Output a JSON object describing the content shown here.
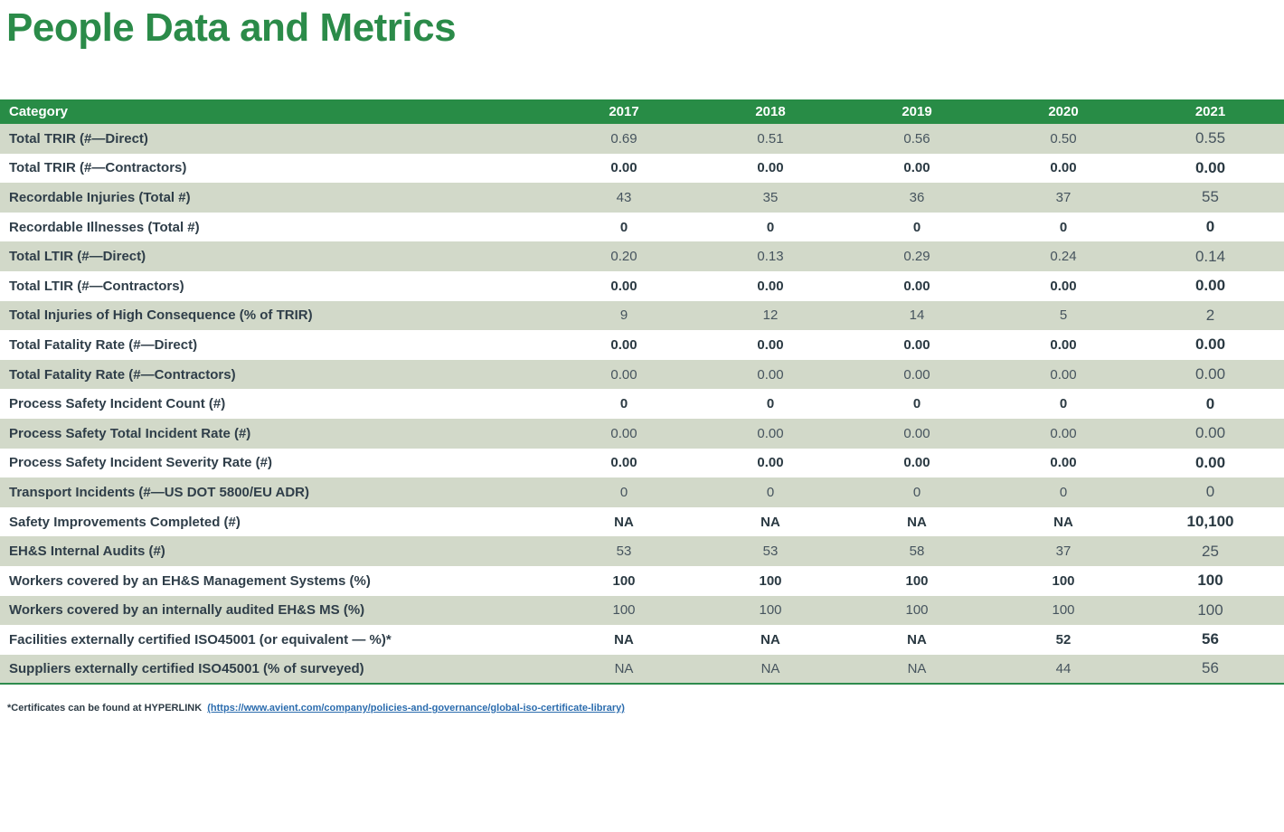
{
  "title": "People Data and Metrics",
  "colors": {
    "title_green": "#2B8B49",
    "header_green": "#288C46",
    "row_green": "#D2D9C9",
    "border_green": "#2E8B4D",
    "label_text": "#2F3E49",
    "value_text": "#46545E",
    "link_blue": "#2B6CAE"
  },
  "table": {
    "category_header": "Category",
    "year_headers": [
      "2017",
      "2018",
      "2019",
      "2020",
      "2021"
    ],
    "rows": [
      {
        "label": "Total TRIR (#—Direct)",
        "values": [
          "0.69",
          "0.51",
          "0.56",
          "0.50",
          "0.55"
        ]
      },
      {
        "label": "Total TRIR (#—Contractors)",
        "values": [
          "0.00",
          "0.00",
          "0.00",
          "0.00",
          "0.00"
        ]
      },
      {
        "label": "Recordable Injuries (Total #)",
        "values": [
          "43",
          "35",
          "36",
          "37",
          "55"
        ]
      },
      {
        "label": "Recordable Illnesses (Total #)",
        "values": [
          "0",
          "0",
          "0",
          "0",
          "0"
        ]
      },
      {
        "label": "Total LTIR (#—Direct)",
        "values": [
          "0.20",
          "0.13",
          "0.29",
          "0.24",
          "0.14"
        ]
      },
      {
        "label": "Total LTIR (#—Contractors)",
        "values": [
          "0.00",
          "0.00",
          "0.00",
          "0.00",
          "0.00"
        ]
      },
      {
        "label": "Total Injuries of High Consequence (% of TRIR)",
        "values": [
          "9",
          "12",
          "14",
          "5",
          "2"
        ]
      },
      {
        "label": "Total Fatality Rate (#—Direct)",
        "values": [
          "0.00",
          "0.00",
          "0.00",
          "0.00",
          "0.00"
        ]
      },
      {
        "label": "Total Fatality Rate (#—Contractors)",
        "values": [
          "0.00",
          "0.00",
          "0.00",
          "0.00",
          "0.00"
        ]
      },
      {
        "label": "Process Safety Incident Count (#)",
        "values": [
          "0",
          "0",
          "0",
          "0",
          "0"
        ]
      },
      {
        "label": "Process Safety Total Incident Rate (#)",
        "values": [
          "0.00",
          "0.00",
          "0.00",
          "0.00",
          "0.00"
        ]
      },
      {
        "label": "Process Safety Incident Severity Rate (#)",
        "values": [
          "0.00",
          "0.00",
          "0.00",
          "0.00",
          "0.00"
        ]
      },
      {
        "label": "Transport Incidents (#—US DOT 5800/EU ADR)",
        "values": [
          "0",
          "0",
          "0",
          "0",
          "0"
        ]
      },
      {
        "label": "Safety Improvements Completed (#)",
        "values": [
          "NA",
          "NA",
          "NA",
          "NA",
          "10,100"
        ]
      },
      {
        "label": "EH&S Internal Audits (#)",
        "values": [
          "53",
          "53",
          "58",
          "37",
          "25"
        ]
      },
      {
        "label": "Workers covered by an EH&S Management Systems (%)",
        "values": [
          "100",
          "100",
          "100",
          "100",
          "100"
        ]
      },
      {
        "label": "Workers covered by an internally audited EH&S MS (%)",
        "values": [
          "100",
          "100",
          "100",
          "100",
          "100"
        ]
      },
      {
        "label": "Facilities externally certified ISO45001 (or equivalent — %)*",
        "values": [
          "NA",
          "NA",
          "NA",
          "52",
          "56"
        ]
      },
      {
        "label": "Suppliers externally certified ISO45001 (% of surveyed)",
        "values": [
          "NA",
          "NA",
          "NA",
          "44",
          "56"
        ]
      }
    ]
  },
  "footnote": {
    "prefix": "*Certificates can be found at HYPERLINK  ",
    "link_text": "(https://www.avient.com/company/policies-and-governance/global-iso-certificate-library)"
  }
}
